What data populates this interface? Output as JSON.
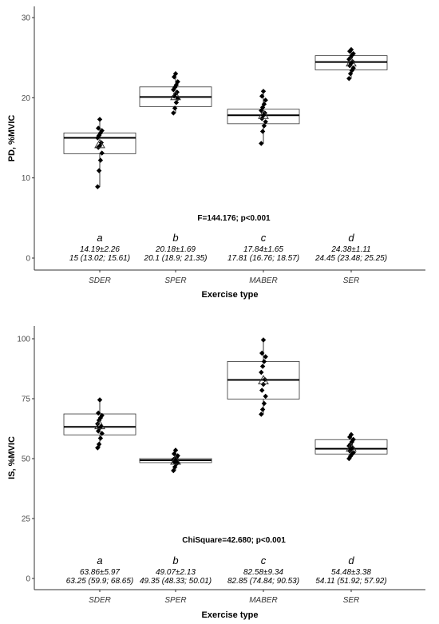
{
  "chart_data": [
    {
      "type": "box",
      "ylabel": "PD, %MVIC",
      "xlabel": "Exercise type",
      "ylim": [
        0,
        30
      ],
      "yticks": [
        0,
        10,
        20,
        30
      ],
      "categories": [
        "SDER",
        "SPER",
        "MABER",
        "SER"
      ],
      "boxes": [
        {
          "q1": 13.02,
          "median": 15,
          "q3": 15.61,
          "mean": 14.19,
          "points": [
            8.9,
            10.9,
            12.2,
            13.1,
            13.8,
            14.0,
            14.4,
            15.0,
            15.3,
            15.6,
            15.9,
            16.2,
            17.3
          ]
        },
        {
          "q1": 18.9,
          "median": 20.1,
          "q3": 21.35,
          "mean": 20.18,
          "points": [
            18.1,
            18.7,
            19.4,
            19.9,
            20.2,
            20.5,
            20.7,
            21.0,
            21.3,
            21.6,
            22.0,
            22.6,
            23.0
          ]
        },
        {
          "q1": 16.76,
          "median": 17.81,
          "q3": 18.57,
          "mean": 17.84,
          "points": [
            14.3,
            15.8,
            16.5,
            17.0,
            17.4,
            17.8,
            18.1,
            18.4,
            18.8,
            19.2,
            19.7,
            20.2,
            20.8
          ]
        },
        {
          "q1": 23.48,
          "median": 24.45,
          "q3": 25.25,
          "mean": 24.38,
          "points": [
            22.4,
            23.0,
            23.4,
            23.7,
            24.0,
            24.3,
            24.5,
            24.8,
            25.0,
            25.3,
            25.5,
            25.8,
            26.0
          ]
        }
      ],
      "stat_text": "F=144.176; p<0.001",
      "annotations": [
        {
          "letter": "a",
          "line1": "14.19±2.26",
          "line2": "15 (13.02; 15.61)"
        },
        {
          "letter": "b",
          "line1": "20.18±1.69",
          "line2": "20.1 (18.9; 21.35)"
        },
        {
          "letter": "c",
          "line1": "17.84±1.65",
          "line2": "17.81 (16.76; 18.57)"
        },
        {
          "letter": "d",
          "line1": "24.38±1.11",
          "line2": "24.45 (23.48; 25.25)"
        }
      ]
    },
    {
      "type": "box",
      "ylabel": "IS, %MVIC",
      "xlabel": "Exercise type",
      "ylim": [
        0,
        100
      ],
      "yticks": [
        0,
        25,
        50,
        75,
        100
      ],
      "categories": [
        "SDER",
        "SPER",
        "MABER",
        "SER"
      ],
      "boxes": [
        {
          "q1": 59.9,
          "median": 63.25,
          "q3": 68.65,
          "mean": 63.86,
          "points": [
            54.5,
            56.0,
            58.5,
            60.5,
            61.5,
            62.8,
            63.5,
            64.5,
            66.0,
            67.0,
            68.0,
            69.0,
            74.5
          ]
        },
        {
          "q1": 48.33,
          "median": 49.35,
          "q3": 50.01,
          "mean": 49.07,
          "points": [
            45.0,
            46.5,
            47.8,
            48.3,
            48.7,
            49.0,
            49.3,
            49.6,
            50.0,
            50.5,
            51.2,
            52.0,
            53.5
          ]
        },
        {
          "q1": 74.84,
          "median": 82.85,
          "q3": 90.53,
          "mean": 82.58,
          "points": [
            68.5,
            70.5,
            73.0,
            76.0,
            78.5,
            81.0,
            83.0,
            86.0,
            88.5,
            90.5,
            92.5,
            94.0,
            99.5
          ]
        },
        {
          "q1": 51.92,
          "median": 54.11,
          "q3": 57.92,
          "mean": 54.48,
          "points": [
            50.0,
            51.0,
            51.8,
            52.5,
            53.2,
            54.0,
            54.5,
            55.3,
            56.0,
            57.0,
            58.0,
            59.0,
            60.0
          ]
        }
      ],
      "stat_text": "ChiSquare=42.680; p<0.001",
      "annotations": [
        {
          "letter": "a",
          "line1": "63.86±5.97",
          "line2": "63.25 (59.9; 68.65)"
        },
        {
          "letter": "b",
          "line1": "49.07±2.13",
          "line2": "49.35 (48.33; 50.01)"
        },
        {
          "letter": "c",
          "line1": "82.58±9.34",
          "line2": "82.85 (74.84; 90.53)"
        },
        {
          "letter": "d",
          "line1": "54.48±3.38",
          "line2": "54.11 (51.92; 57.92)"
        }
      ]
    }
  ]
}
